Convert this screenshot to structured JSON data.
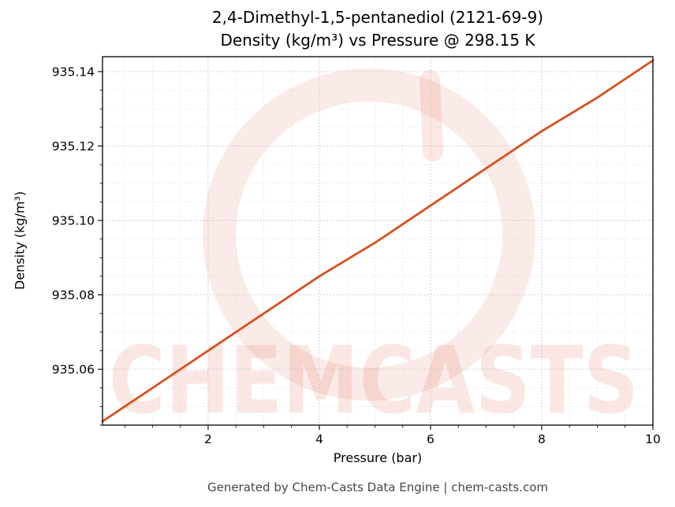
{
  "chart_data": {
    "type": "line",
    "title_line1": "2,4-Dimethyl-1,5-pentanediol (2121-69-9)",
    "title_line2": "Density (kg/m³) vs Pressure @ 298.15 K",
    "xlabel": "Pressure (bar)",
    "ylabel": "Density (kg/m³)",
    "xlim": [
      0.1,
      10
    ],
    "ylim": [
      935.045,
      935.144
    ],
    "x_ticks": [
      2,
      4,
      6,
      8,
      10
    ],
    "x_tick_labels": [
      "2",
      "4",
      "6",
      "8",
      "10"
    ],
    "y_ticks": [
      935.06,
      935.08,
      935.1,
      935.12,
      935.14
    ],
    "y_tick_labels": [
      "935.06",
      "935.08",
      "935.10",
      "935.12",
      "935.14"
    ],
    "x_minor_step": 0.5,
    "y_minor_step": 0.005,
    "grid": true,
    "legend": "none",
    "series": [
      {
        "name": "density-vs-pressure",
        "color": "#d9501e",
        "x": [
          0.1,
          1,
          2,
          3,
          4,
          5,
          6,
          7,
          8,
          9,
          10
        ],
        "y": [
          935.046,
          935.055,
          935.065,
          935.075,
          935.085,
          935.094,
          935.104,
          935.114,
          935.124,
          935.133,
          935.143
        ]
      }
    ]
  },
  "watermark": {
    "text": "CHEMCASTS",
    "color": "#dd4b32"
  },
  "footer": {
    "text": "Generated by Chem-Casts Data Engine | chem-casts.com"
  }
}
